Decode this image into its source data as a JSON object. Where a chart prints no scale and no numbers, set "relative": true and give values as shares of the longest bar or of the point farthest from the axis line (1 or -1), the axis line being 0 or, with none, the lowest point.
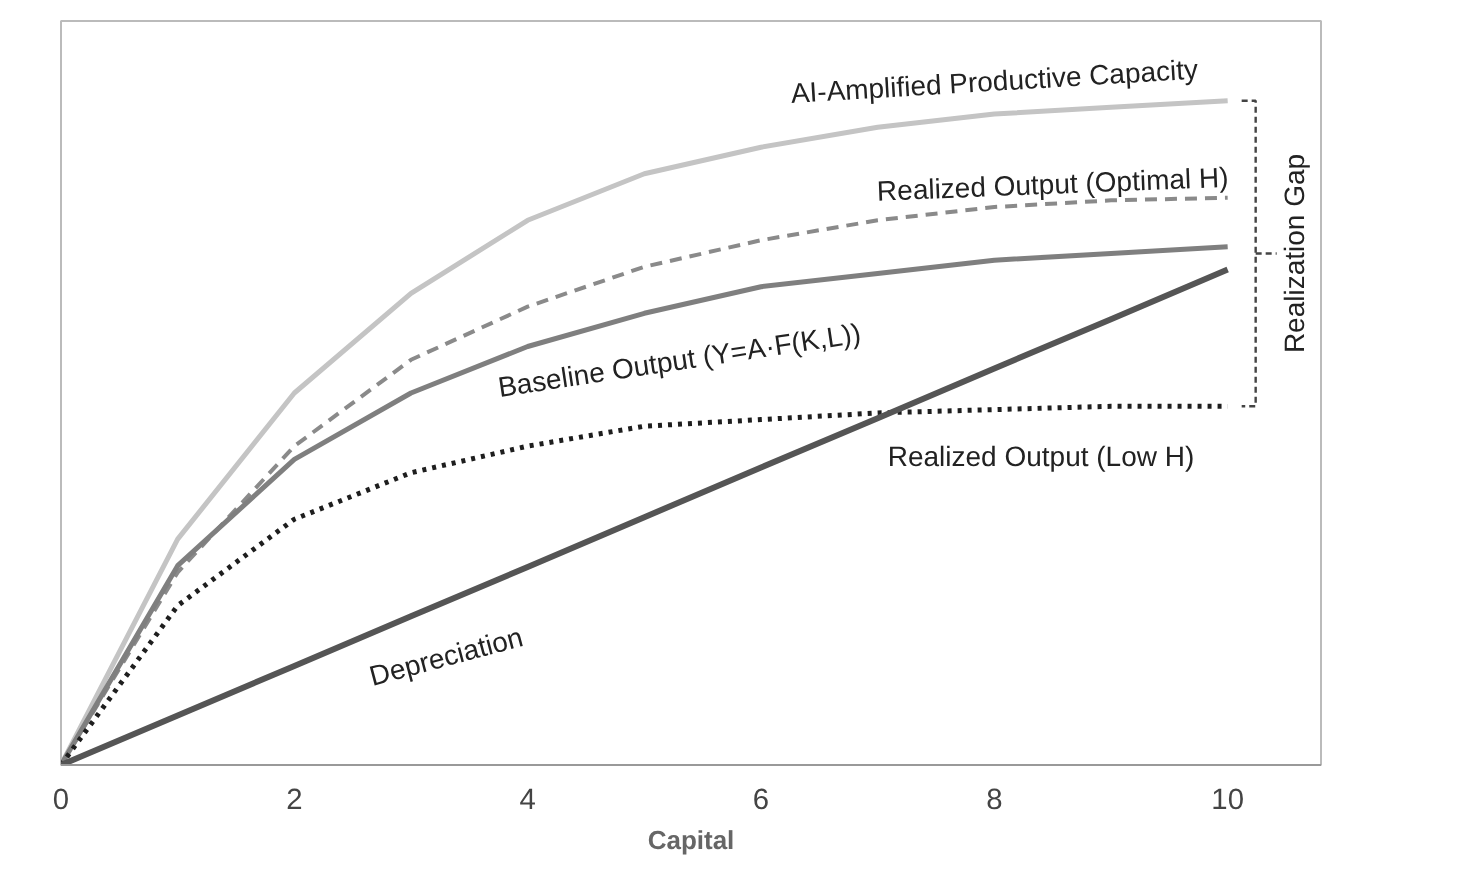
{
  "chart_data": {
    "type": "line",
    "relative": true,
    "xlabel": "Capital",
    "xlim": [
      0,
      10.8
    ],
    "xticks": [
      0,
      2,
      4,
      6,
      8,
      10
    ],
    "grid": false,
    "tick_labels": "x",
    "x": [
      0,
      1,
      2,
      3,
      4,
      5,
      6,
      7,
      8,
      9,
      10
    ],
    "series": [
      {
        "name": "AI-Amplified Productive Capacity",
        "color": "#c4c4c4",
        "line_style": "solid",
        "values": [
          0,
          0.34,
          0.56,
          0.71,
          0.82,
          0.89,
          0.93,
          0.96,
          0.98,
          0.99,
          1
        ]
      },
      {
        "name": "Realized Output (Optimal H)",
        "color": "#8a8a8a",
        "line_style": "dashed",
        "values": [
          0,
          0.29,
          0.48,
          0.61,
          0.69,
          0.75,
          0.79,
          0.82,
          0.84,
          0.85,
          0.854
        ]
      },
      {
        "name": "Baseline Output (Y=A·F(K,L))",
        "color": "#7f7f7f",
        "line_style": "solid",
        "values": [
          0,
          0.3,
          0.46,
          0.56,
          0.63,
          0.68,
          0.72,
          0.74,
          0.76,
          0.77,
          0.78
        ]
      },
      {
        "name": "Realized Output (Low H)",
        "color": "#1e1e1e",
        "line_style": "dotted",
        "values": [
          0,
          0.24,
          0.37,
          0.44,
          0.48,
          0.51,
          0.52,
          0.53,
          0.535,
          0.54,
          0.54
        ]
      },
      {
        "name": "Depreciation",
        "color": "#555555",
        "line_style": "solid",
        "values": [
          0,
          0.0746,
          0.149,
          0.224,
          0.298,
          0.373,
          0.448,
          0.522,
          0.597,
          0.671,
          0.746
        ]
      }
    ],
    "annotations": [
      "Realization Gap"
    ]
  }
}
